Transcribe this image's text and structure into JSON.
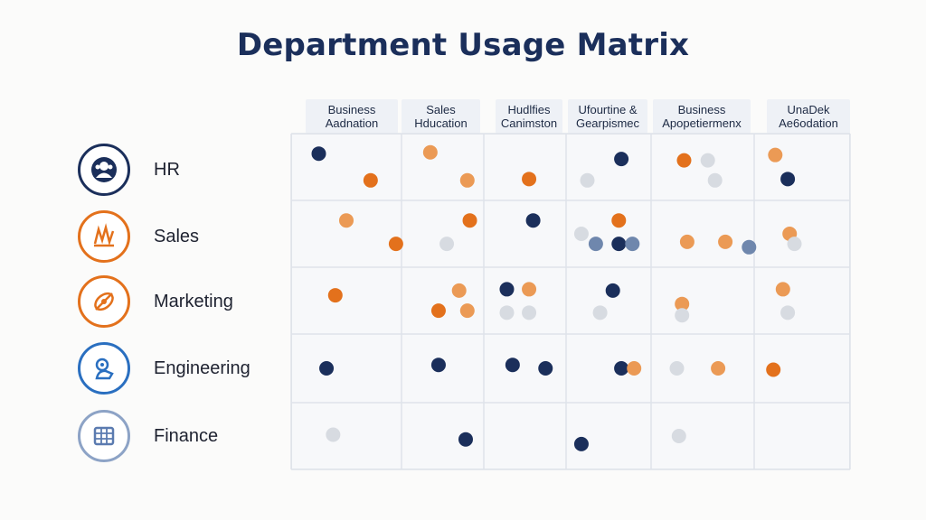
{
  "chart_data": {
    "type": "scatter",
    "title": "Department Usage Matrix",
    "columns": [
      [
        "Business",
        "Aadnation"
      ],
      [
        "Sales",
        "Hducation"
      ],
      [
        "Hudlfies",
        "Canimston"
      ],
      [
        "Ufourtine &",
        "Gearpismec"
      ],
      [
        "Business",
        "Apopetiermenx"
      ],
      [
        "UnaDek",
        "Ae6odation"
      ]
    ],
    "rows": [
      "HR",
      "Sales",
      "Marketing",
      "Engineering",
      "Finance"
    ],
    "legend_colors": {
      "navy": "#1b2f5b",
      "orange": "#e3711c",
      "light_orange": "#eb9a55",
      "slate": "#6f87ad",
      "gray": "#d7dbe1"
    },
    "points": [
      {
        "row": 0,
        "col": 0,
        "x": 0.25,
        "y": 0.3,
        "color": "navy"
      },
      {
        "row": 0,
        "col": 0,
        "x": 0.72,
        "y": 0.7,
        "color": "orange"
      },
      {
        "row": 0,
        "col": 1,
        "x": 0.35,
        "y": 0.28,
        "color": "light_orange"
      },
      {
        "row": 0,
        "col": 1,
        "x": 0.8,
        "y": 0.7,
        "color": "light_orange"
      },
      {
        "row": 0,
        "col": 2,
        "x": 0.55,
        "y": 0.68,
        "color": "orange"
      },
      {
        "row": 0,
        "col": 3,
        "x": 0.25,
        "y": 0.7,
        "color": "gray"
      },
      {
        "row": 0,
        "col": 3,
        "x": 0.65,
        "y": 0.38,
        "color": "navy"
      },
      {
        "row": 0,
        "col": 4,
        "x": 0.32,
        "y": 0.4,
        "color": "orange"
      },
      {
        "row": 0,
        "col": 4,
        "x": 0.55,
        "y": 0.4,
        "color": "gray"
      },
      {
        "row": 0,
        "col": 4,
        "x": 0.62,
        "y": 0.7,
        "color": "gray"
      },
      {
        "row": 0,
        "col": 5,
        "x": 0.22,
        "y": 0.32,
        "color": "light_orange"
      },
      {
        "row": 0,
        "col": 5,
        "x": 0.35,
        "y": 0.68,
        "color": "navy"
      },
      {
        "row": 1,
        "col": 0,
        "x": 0.5,
        "y": 0.3,
        "color": "light_orange"
      },
      {
        "row": 1,
        "col": 0,
        "x": 0.95,
        "y": 0.65,
        "color": "orange"
      },
      {
        "row": 1,
        "col": 1,
        "x": 0.55,
        "y": 0.65,
        "color": "gray"
      },
      {
        "row": 1,
        "col": 1,
        "x": 0.83,
        "y": 0.3,
        "color": "orange"
      },
      {
        "row": 1,
        "col": 2,
        "x": 0.6,
        "y": 0.3,
        "color": "navy"
      },
      {
        "row": 1,
        "col": 3,
        "x": 0.18,
        "y": 0.5,
        "color": "gray"
      },
      {
        "row": 1,
        "col": 3,
        "x": 0.35,
        "y": 0.65,
        "color": "slate"
      },
      {
        "row": 1,
        "col": 3,
        "x": 0.62,
        "y": 0.3,
        "color": "orange"
      },
      {
        "row": 1,
        "col": 3,
        "x": 0.62,
        "y": 0.65,
        "color": "navy"
      },
      {
        "row": 1,
        "col": 3,
        "x": 0.78,
        "y": 0.65,
        "color": "slate"
      },
      {
        "row": 1,
        "col": 4,
        "x": 0.35,
        "y": 0.62,
        "color": "light_orange"
      },
      {
        "row": 1,
        "col": 4,
        "x": 0.72,
        "y": 0.62,
        "color": "light_orange"
      },
      {
        "row": 1,
        "col": 4,
        "x": 0.95,
        "y": 0.7,
        "color": "slate"
      },
      {
        "row": 1,
        "col": 5,
        "x": 0.37,
        "y": 0.5,
        "color": "light_orange"
      },
      {
        "row": 1,
        "col": 5,
        "x": 0.42,
        "y": 0.65,
        "color": "gray"
      },
      {
        "row": 2,
        "col": 0,
        "x": 0.4,
        "y": 0.42,
        "color": "orange"
      },
      {
        "row": 2,
        "col": 1,
        "x": 0.45,
        "y": 0.65,
        "color": "orange"
      },
      {
        "row": 2,
        "col": 1,
        "x": 0.7,
        "y": 0.35,
        "color": "light_orange"
      },
      {
        "row": 2,
        "col": 1,
        "x": 0.8,
        "y": 0.65,
        "color": "light_orange"
      },
      {
        "row": 2,
        "col": 2,
        "x": 0.28,
        "y": 0.33,
        "color": "navy"
      },
      {
        "row": 2,
        "col": 2,
        "x": 0.28,
        "y": 0.68,
        "color": "gray"
      },
      {
        "row": 2,
        "col": 2,
        "x": 0.55,
        "y": 0.33,
        "color": "light_orange"
      },
      {
        "row": 2,
        "col": 2,
        "x": 0.55,
        "y": 0.68,
        "color": "gray"
      },
      {
        "row": 2,
        "col": 3,
        "x": 0.4,
        "y": 0.68,
        "color": "gray"
      },
      {
        "row": 2,
        "col": 3,
        "x": 0.55,
        "y": 0.35,
        "color": "navy"
      },
      {
        "row": 2,
        "col": 4,
        "x": 0.3,
        "y": 0.55,
        "color": "light_orange"
      },
      {
        "row": 2,
        "col": 4,
        "x": 0.3,
        "y": 0.72,
        "color": "gray"
      },
      {
        "row": 2,
        "col": 5,
        "x": 0.3,
        "y": 0.33,
        "color": "light_orange"
      },
      {
        "row": 2,
        "col": 5,
        "x": 0.35,
        "y": 0.68,
        "color": "gray"
      },
      {
        "row": 3,
        "col": 0,
        "x": 0.32,
        "y": 0.5,
        "color": "navy"
      },
      {
        "row": 3,
        "col": 1,
        "x": 0.45,
        "y": 0.45,
        "color": "navy"
      },
      {
        "row": 3,
        "col": 2,
        "x": 0.35,
        "y": 0.45,
        "color": "navy"
      },
      {
        "row": 3,
        "col": 2,
        "x": 0.75,
        "y": 0.5,
        "color": "navy"
      },
      {
        "row": 3,
        "col": 3,
        "x": 0.65,
        "y": 0.5,
        "color": "navy"
      },
      {
        "row": 3,
        "col": 3,
        "x": 0.8,
        "y": 0.5,
        "color": "light_orange"
      },
      {
        "row": 3,
        "col": 4,
        "x": 0.25,
        "y": 0.5,
        "color": "gray"
      },
      {
        "row": 3,
        "col": 4,
        "x": 0.65,
        "y": 0.5,
        "color": "light_orange"
      },
      {
        "row": 3,
        "col": 5,
        "x": 0.2,
        "y": 0.52,
        "color": "orange"
      },
      {
        "row": 4,
        "col": 0,
        "x": 0.38,
        "y": 0.48,
        "color": "gray"
      },
      {
        "row": 4,
        "col": 1,
        "x": 0.78,
        "y": 0.55,
        "color": "navy"
      },
      {
        "row": 4,
        "col": 3,
        "x": 0.18,
        "y": 0.62,
        "color": "navy"
      },
      {
        "row": 4,
        "col": 4,
        "x": 0.27,
        "y": 0.5,
        "color": "gray"
      }
    ]
  }
}
